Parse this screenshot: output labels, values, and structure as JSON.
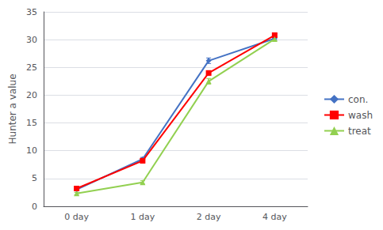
{
  "chart_data": {
    "type": "line",
    "categories": [
      "0 day",
      "1 day",
      "2 day",
      "4 day"
    ],
    "series": [
      {
        "name": "con.",
        "color": "#4472C4",
        "marker": "diamond",
        "values": [
          3.0,
          8.5,
          26.2,
          30.2
        ],
        "errors": [
          0.2,
          0.3,
          0.5,
          0.3
        ]
      },
      {
        "name": "wash",
        "color": "#FF0000",
        "marker": "square",
        "values": [
          3.2,
          8.2,
          24.0,
          30.8
        ],
        "errors": [
          0.2,
          0.4,
          0.4,
          0.3
        ]
      },
      {
        "name": "treat",
        "color": "#92D050",
        "marker": "triangle",
        "values": [
          2.3,
          4.3,
          22.5,
          30.1
        ],
        "errors": [
          0.2,
          0.3,
          0.5,
          0.3
        ]
      }
    ],
    "ylabel": "Hunter a value",
    "ylim": [
      0,
      35
    ],
    "yticks": [
      0,
      5,
      10,
      15,
      20,
      25,
      30,
      35
    ],
    "grid": true,
    "legend": "right"
  }
}
